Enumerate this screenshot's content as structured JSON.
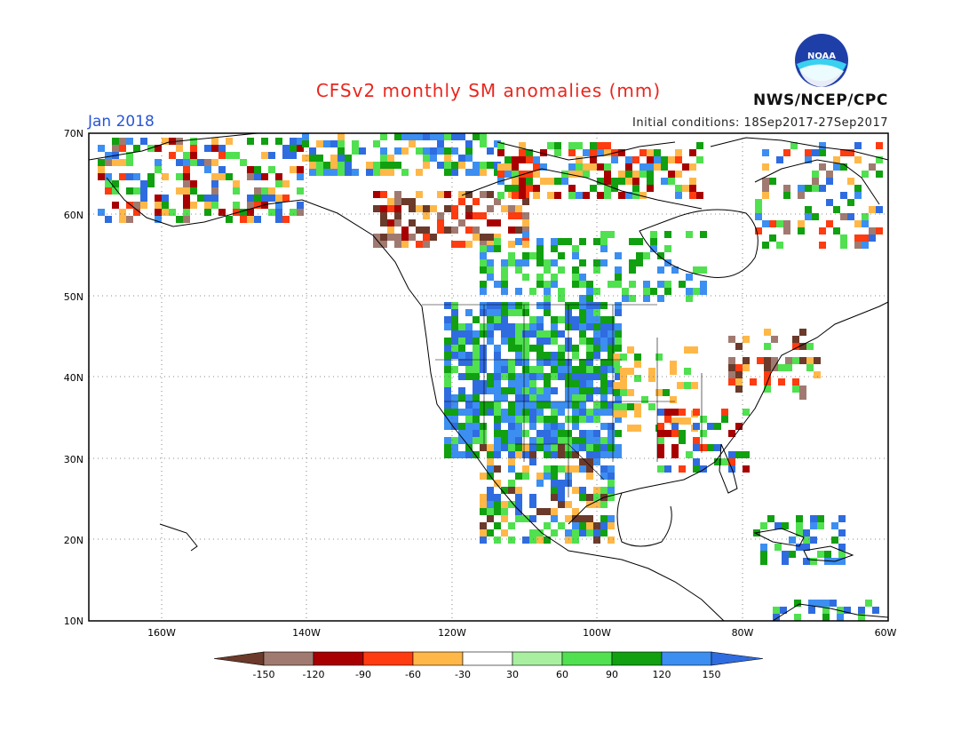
{
  "title": "CFSv2 monthly SM anomalies (mm)",
  "month": "Jan 2018",
  "initial_conditions": "Initial conditions: 18Sep2017-27Sep2017",
  "agency": "NWS/NCEP/CPC",
  "logo_text": "NOAA",
  "lat_labels": [
    "70N",
    "60N",
    "50N",
    "40N",
    "30N",
    "20N",
    "10N"
  ],
  "lon_labels": [
    "160W",
    "140W",
    "120W",
    "100W",
    "80W",
    "60W"
  ],
  "colorbar": {
    "labels": [
      "-150",
      "-120",
      "-90",
      "-60",
      "-30",
      "30",
      "60",
      "90",
      "120",
      "150"
    ],
    "colors": [
      "#6b3a2a",
      "#a07a70",
      "#a80000",
      "#ff3b10",
      "#ffb848",
      "#ffffff",
      "#a8f0a0",
      "#50e050",
      "#10a010",
      "#3c8ef0",
      "#2f6ce0"
    ]
  },
  "map": {
    "lon_range": [
      "170W",
      "60W"
    ],
    "lat_range": [
      "10N",
      "70N"
    ]
  }
}
